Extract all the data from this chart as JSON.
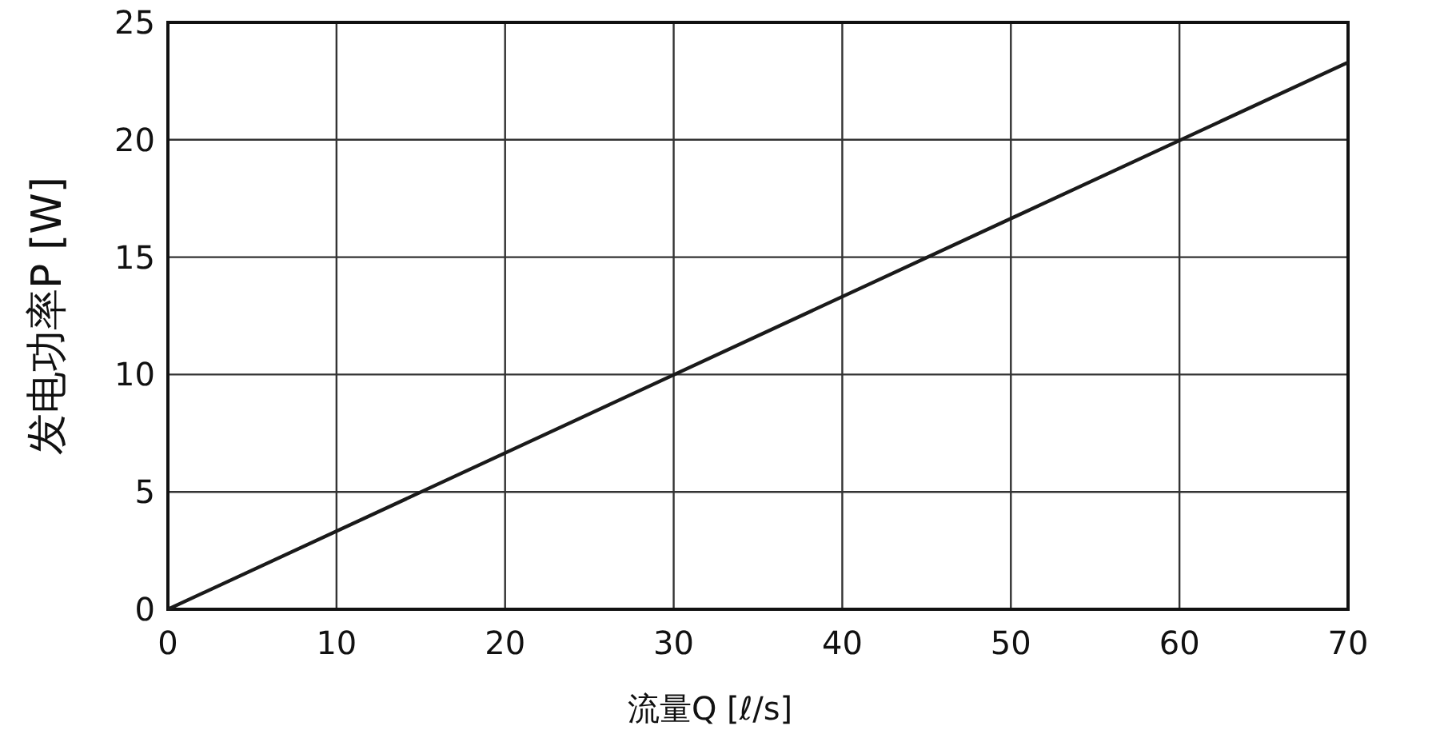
{
  "chart_data": {
    "type": "line",
    "xlabel": "流量Q [ℓ/s]",
    "ylabel": "发电功率P [W]",
    "x": [
      0,
      70
    ],
    "series": [
      {
        "color": "#1a1a1a",
        "values": [
          0,
          23.3
        ]
      }
    ],
    "xlim": [
      0,
      70
    ],
    "ylim": [
      0,
      25
    ],
    "xticks": [
      0,
      10,
      20,
      30,
      40,
      50,
      60,
      70
    ],
    "yticks": [
      0,
      5,
      10,
      15,
      20,
      25
    ],
    "grid": true,
    "marker": "none",
    "line_style": "solid"
  }
}
